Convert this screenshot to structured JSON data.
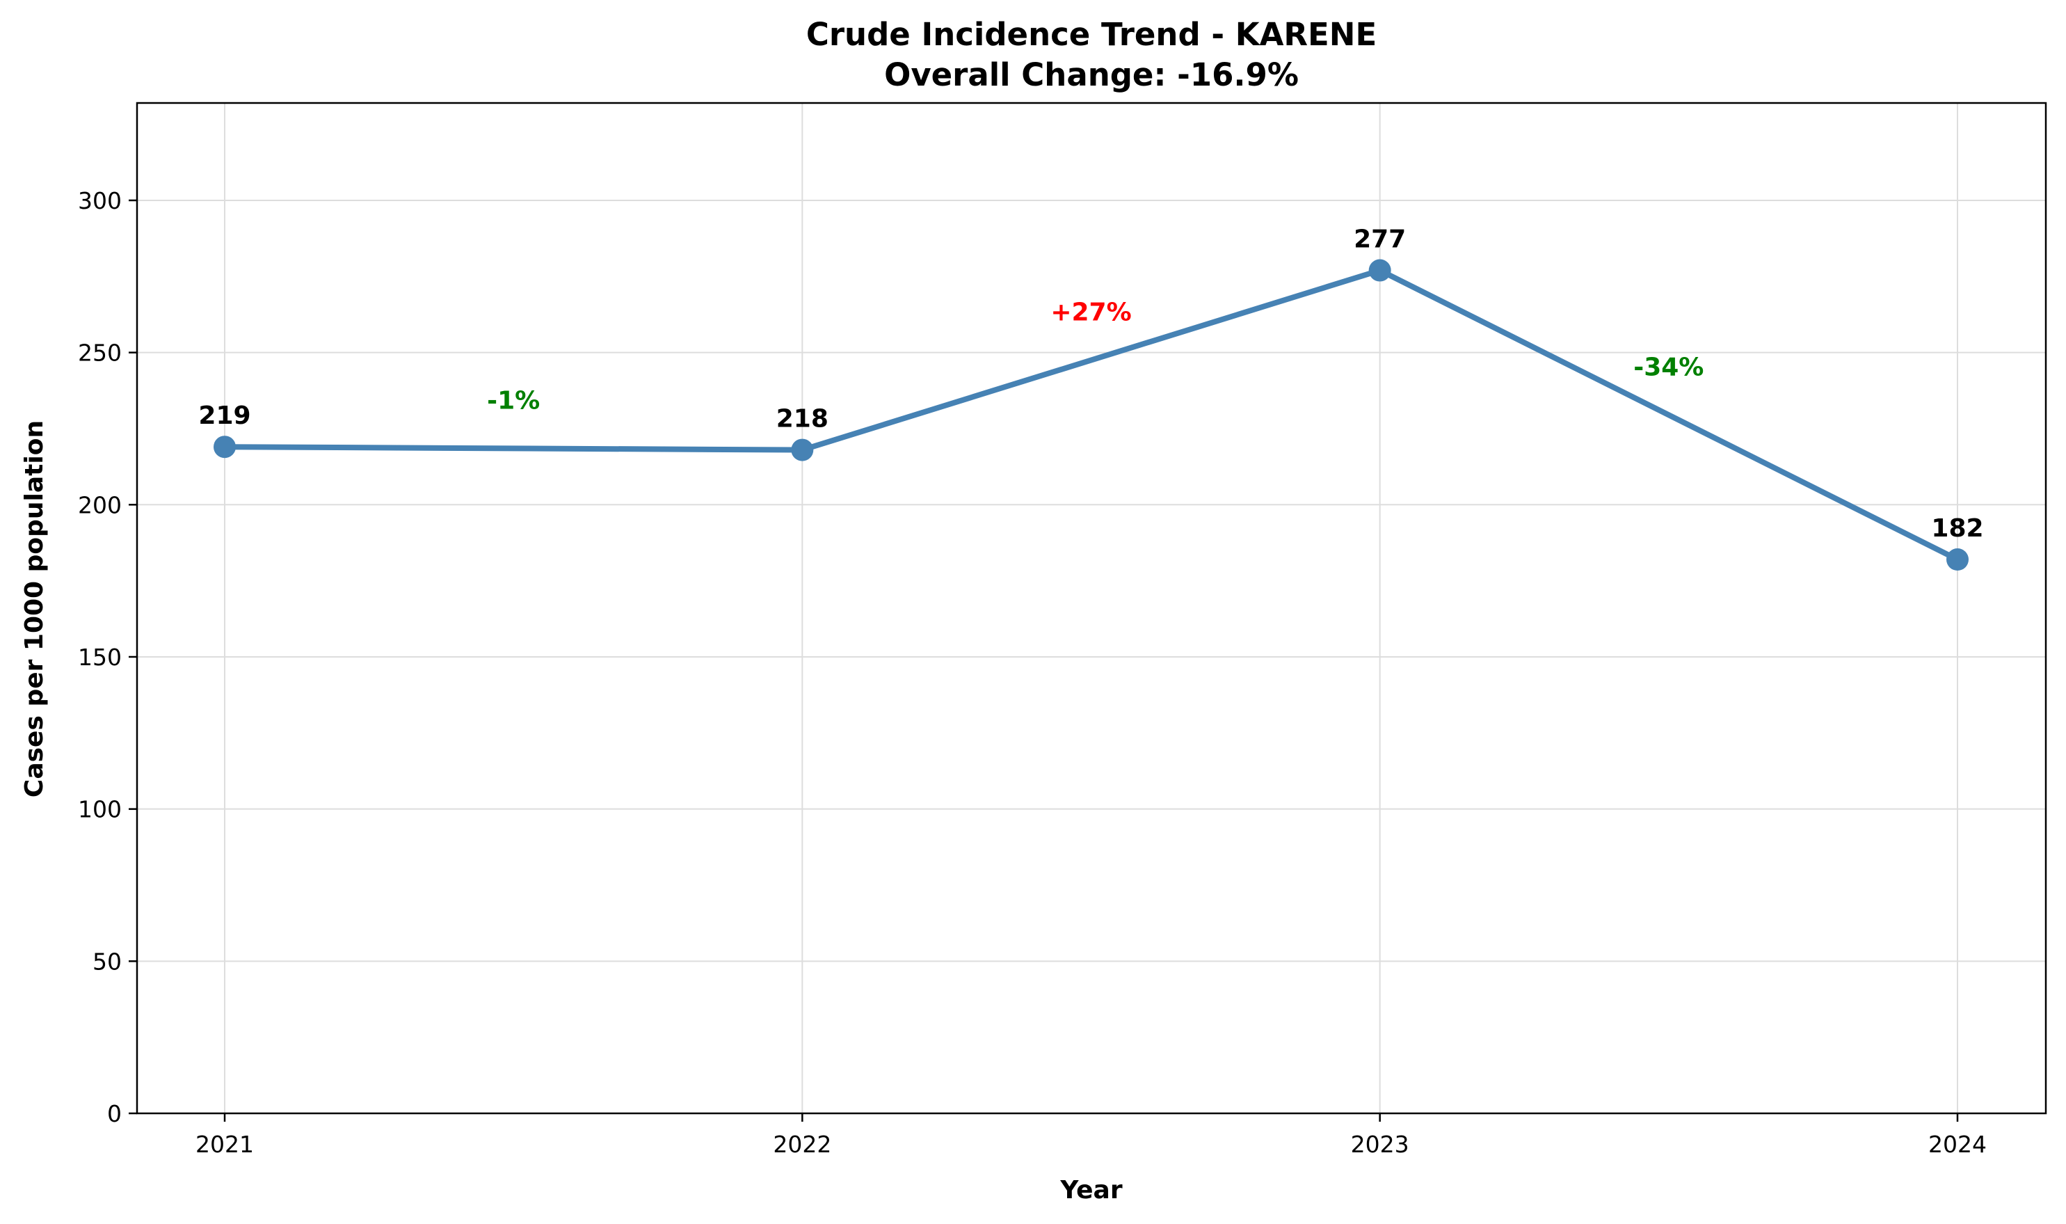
{
  "chart_data": {
    "type": "line",
    "title": "Crude Incidence Trend - KARENE",
    "subtitle": "Overall Change: -16.9%",
    "xlabel": "Year",
    "ylabel": "Cases per 1000 population",
    "categories": [
      "2021",
      "2022",
      "2023",
      "2024"
    ],
    "series": [
      {
        "values": [
          219,
          218,
          277,
          182
        ]
      }
    ],
    "data_labels": [
      "219",
      "218",
      "277",
      "182"
    ],
    "changes": [
      {
        "label": "-1%",
        "direction": "down"
      },
      {
        "label": "+27%",
        "direction": "up"
      },
      {
        "label": "-34%",
        "direction": "down"
      }
    ],
    "y_ticks": [
      0,
      50,
      100,
      150,
      200,
      250,
      300
    ],
    "ylim": [
      0,
      332
    ],
    "grid": true,
    "colors": {
      "line": "#4682b4",
      "increase": "#ff0000",
      "decrease": "#008000",
      "grid": "#dddddd"
    }
  }
}
